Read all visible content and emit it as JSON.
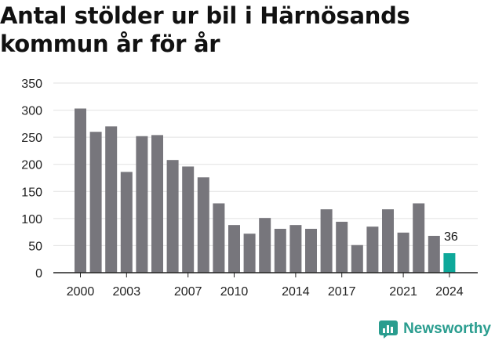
{
  "title": "Antal stölder ur bil i Härnösands kommun år för år",
  "brand": {
    "name": "Newsworthy",
    "icon": "newsworthy-logo-icon",
    "color": "#2a9d8f"
  },
  "colors": {
    "bar": "#77767c",
    "highlight": "#0ea89a",
    "grid": "#e2e2e2",
    "axis": "#222222"
  },
  "chart_data": {
    "type": "bar",
    "title": "Antal stölder ur bil i Härnösands kommun år för år",
    "xlabel": "",
    "ylabel": "",
    "categories": [
      "2000",
      "2001",
      "2002",
      "2003",
      "2004",
      "2005",
      "2006",
      "2007",
      "2008",
      "2009",
      "2010",
      "2011",
      "2012",
      "2013",
      "2014",
      "2015",
      "2016",
      "2017",
      "2018",
      "2019",
      "2020",
      "2021",
      "2022",
      "2023",
      "2024"
    ],
    "values": [
      303,
      260,
      270,
      186,
      252,
      254,
      208,
      196,
      176,
      128,
      88,
      72,
      101,
      81,
      88,
      81,
      117,
      94,
      51,
      85,
      117,
      74,
      128,
      68,
      36
    ],
    "x_tick_labels": [
      "2000",
      "2003",
      "2007",
      "2010",
      "2014",
      "2017",
      "2021",
      "2024"
    ],
    "y_ticks": [
      0,
      50,
      100,
      150,
      200,
      250,
      300,
      350
    ],
    "ylim": [
      0,
      350
    ],
    "grid": true,
    "highlight_index": 24,
    "data_labels": [
      {
        "index": 24,
        "text": "36"
      }
    ]
  }
}
